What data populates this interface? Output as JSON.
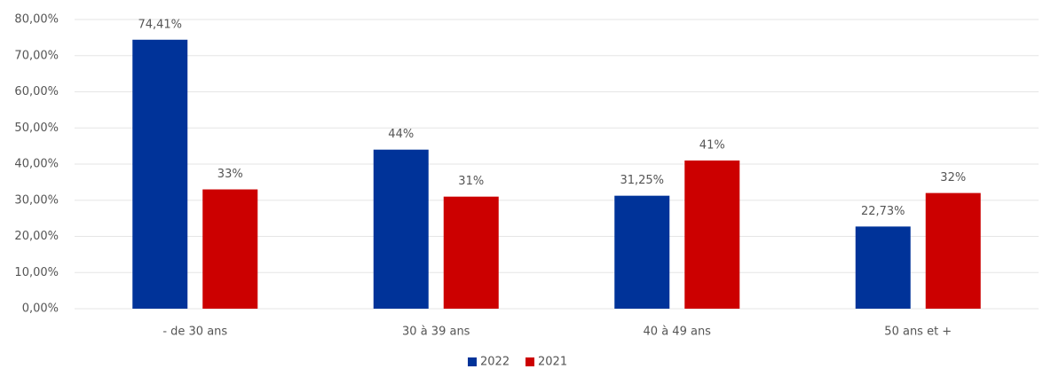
{
  "chart_data": {
    "type": "bar",
    "categories": [
      "- de 30 ans",
      "30 à 39 ans",
      "40 à 49 ans",
      "50 ans et +"
    ],
    "series": [
      {
        "name": "2022",
        "color": "#003399",
        "values": [
          74.41,
          44,
          31.25,
          22.73
        ],
        "value_labels": [
          "74,41%",
          "44%",
          "31,25%",
          "22,73%"
        ]
      },
      {
        "name": "2021",
        "color": "#cc0000",
        "values": [
          33,
          31,
          41,
          32
        ],
        "value_labels": [
          "33%",
          "31%",
          "41%",
          "32%"
        ]
      }
    ],
    "ylim": [
      0,
      80
    ],
    "yticks": [
      {
        "value": 0,
        "label": "0,00%"
      },
      {
        "value": 10,
        "label": "10,00%"
      },
      {
        "value": 20,
        "label": "20,00%"
      },
      {
        "value": 30,
        "label": "30,00%"
      },
      {
        "value": 40,
        "label": "40,00%"
      },
      {
        "value": 50,
        "label": "50,00%"
      },
      {
        "value": 60,
        "label": "60,00%"
      },
      {
        "value": 70,
        "label": "70,00%"
      },
      {
        "value": 80,
        "label": "80,00%"
      }
    ],
    "grid": true,
    "legend": "bottom"
  }
}
